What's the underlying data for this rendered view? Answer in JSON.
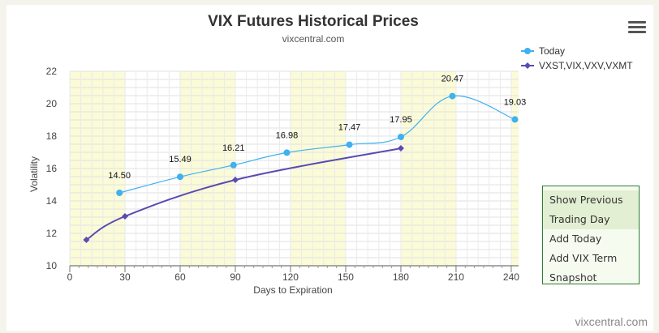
{
  "menu_icon": "hamburger-menu-icon",
  "side_menu": {
    "items": [
      "Show Previous Trading Day",
      "Add Today",
      "Add VIX Term Snapshot"
    ]
  },
  "footer": {
    "credit": "vixcentral.com"
  },
  "chart_data": {
    "type": "line",
    "title": "VIX Futures Historical Prices",
    "subtitle": "vixcentral.com",
    "xlabel": "Days to Expiration",
    "ylabel": "Volatility",
    "xlim": [
      0,
      244
    ],
    "ylim": [
      10,
      22
    ],
    "xticks": [
      0,
      30,
      60,
      90,
      120,
      150,
      180,
      210,
      240
    ],
    "yticks": [
      10,
      12,
      14,
      16,
      18,
      20,
      22
    ],
    "grid": true,
    "legend_position": "top-right",
    "bands": [
      [
        0,
        30
      ],
      [
        60,
        90
      ],
      [
        120,
        150
      ],
      [
        180,
        210
      ],
      [
        240,
        244
      ]
    ],
    "band_color": "#fbfbd8",
    "series": [
      {
        "name": "Today",
        "color": "#3fb0f0",
        "marker": "circle",
        "x": [
          27,
          60,
          89,
          118,
          152,
          180,
          208,
          242
        ],
        "y": [
          14.5,
          15.49,
          16.21,
          16.98,
          17.47,
          17.95,
          20.47,
          19.03
        ],
        "labels": [
          "14.50",
          "15.49",
          "16.21",
          "16.98",
          "17.47",
          "17.95",
          "20.47",
          "19.03"
        ]
      },
      {
        "name": "VXST,VIX,VXV,VXMT",
        "color": "#5a4bb0",
        "marker": "diamond",
        "x": [
          9,
          30,
          90,
          180
        ],
        "y": [
          11.6,
          13.05,
          15.3,
          17.25
        ],
        "labels": []
      }
    ]
  }
}
